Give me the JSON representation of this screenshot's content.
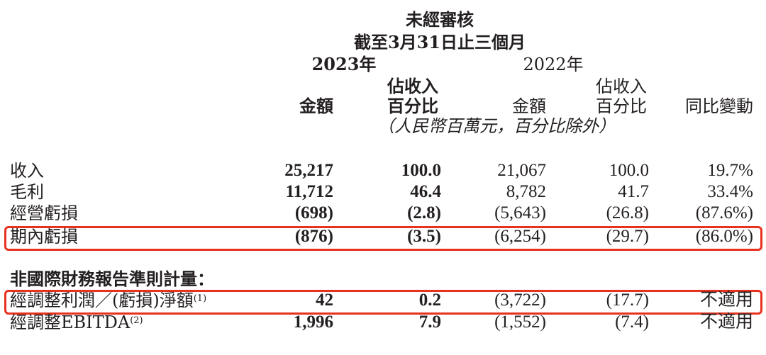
{
  "header": {
    "title": "未經審核",
    "period": "截至3月31日止三個月",
    "year_2023": "2023年",
    "year_2022": "2022年",
    "col_amount_2023": "金額",
    "col_pct_2023_l1": "佔收入",
    "col_pct_2023_l2": "百分比",
    "col_amount_2022": "金額",
    "col_pct_2022_l1": "佔收入",
    "col_pct_2022_l2": "百分比",
    "col_yoy": "同比變動",
    "unit_note": "（人民幣百萬元，百分比除外）"
  },
  "rows": [
    {
      "label": "收入",
      "v": [
        "25,217",
        "100.0",
        "21,067",
        "100.0",
        "19.7%"
      ]
    },
    {
      "label": "毛利",
      "v": [
        "11,712",
        "46.4",
        "8,782",
        "41.7",
        "33.4%"
      ]
    },
    {
      "label": "經營虧損",
      "v": [
        "(698)",
        "(2.8)",
        "(5,643)",
        "(26.8)",
        "(87.6%)"
      ]
    },
    {
      "label": "期內虧損",
      "v": [
        "(876)",
        "(3.5)",
        "(6,254)",
        "(29.7)",
        "(86.0%)"
      ],
      "highlighted": true
    }
  ],
  "non_ifrs": {
    "heading": "非國際財務報告準則計量：",
    "rows": [
      {
        "label": "經調整利潤／(虧損)淨額",
        "note": "(1)",
        "v": [
          "42",
          "0.2",
          "(3,722)",
          "(17.7)",
          "不適用"
        ],
        "highlighted": true
      },
      {
        "label": "經調整EBITDA",
        "note": "(2)",
        "v": [
          "1,996",
          "7.9",
          "(1,552)",
          "(7.4)",
          "不適用"
        ]
      }
    ]
  },
  "colors": {
    "highlight_border": "#e8321e",
    "text": "#231f20"
  }
}
